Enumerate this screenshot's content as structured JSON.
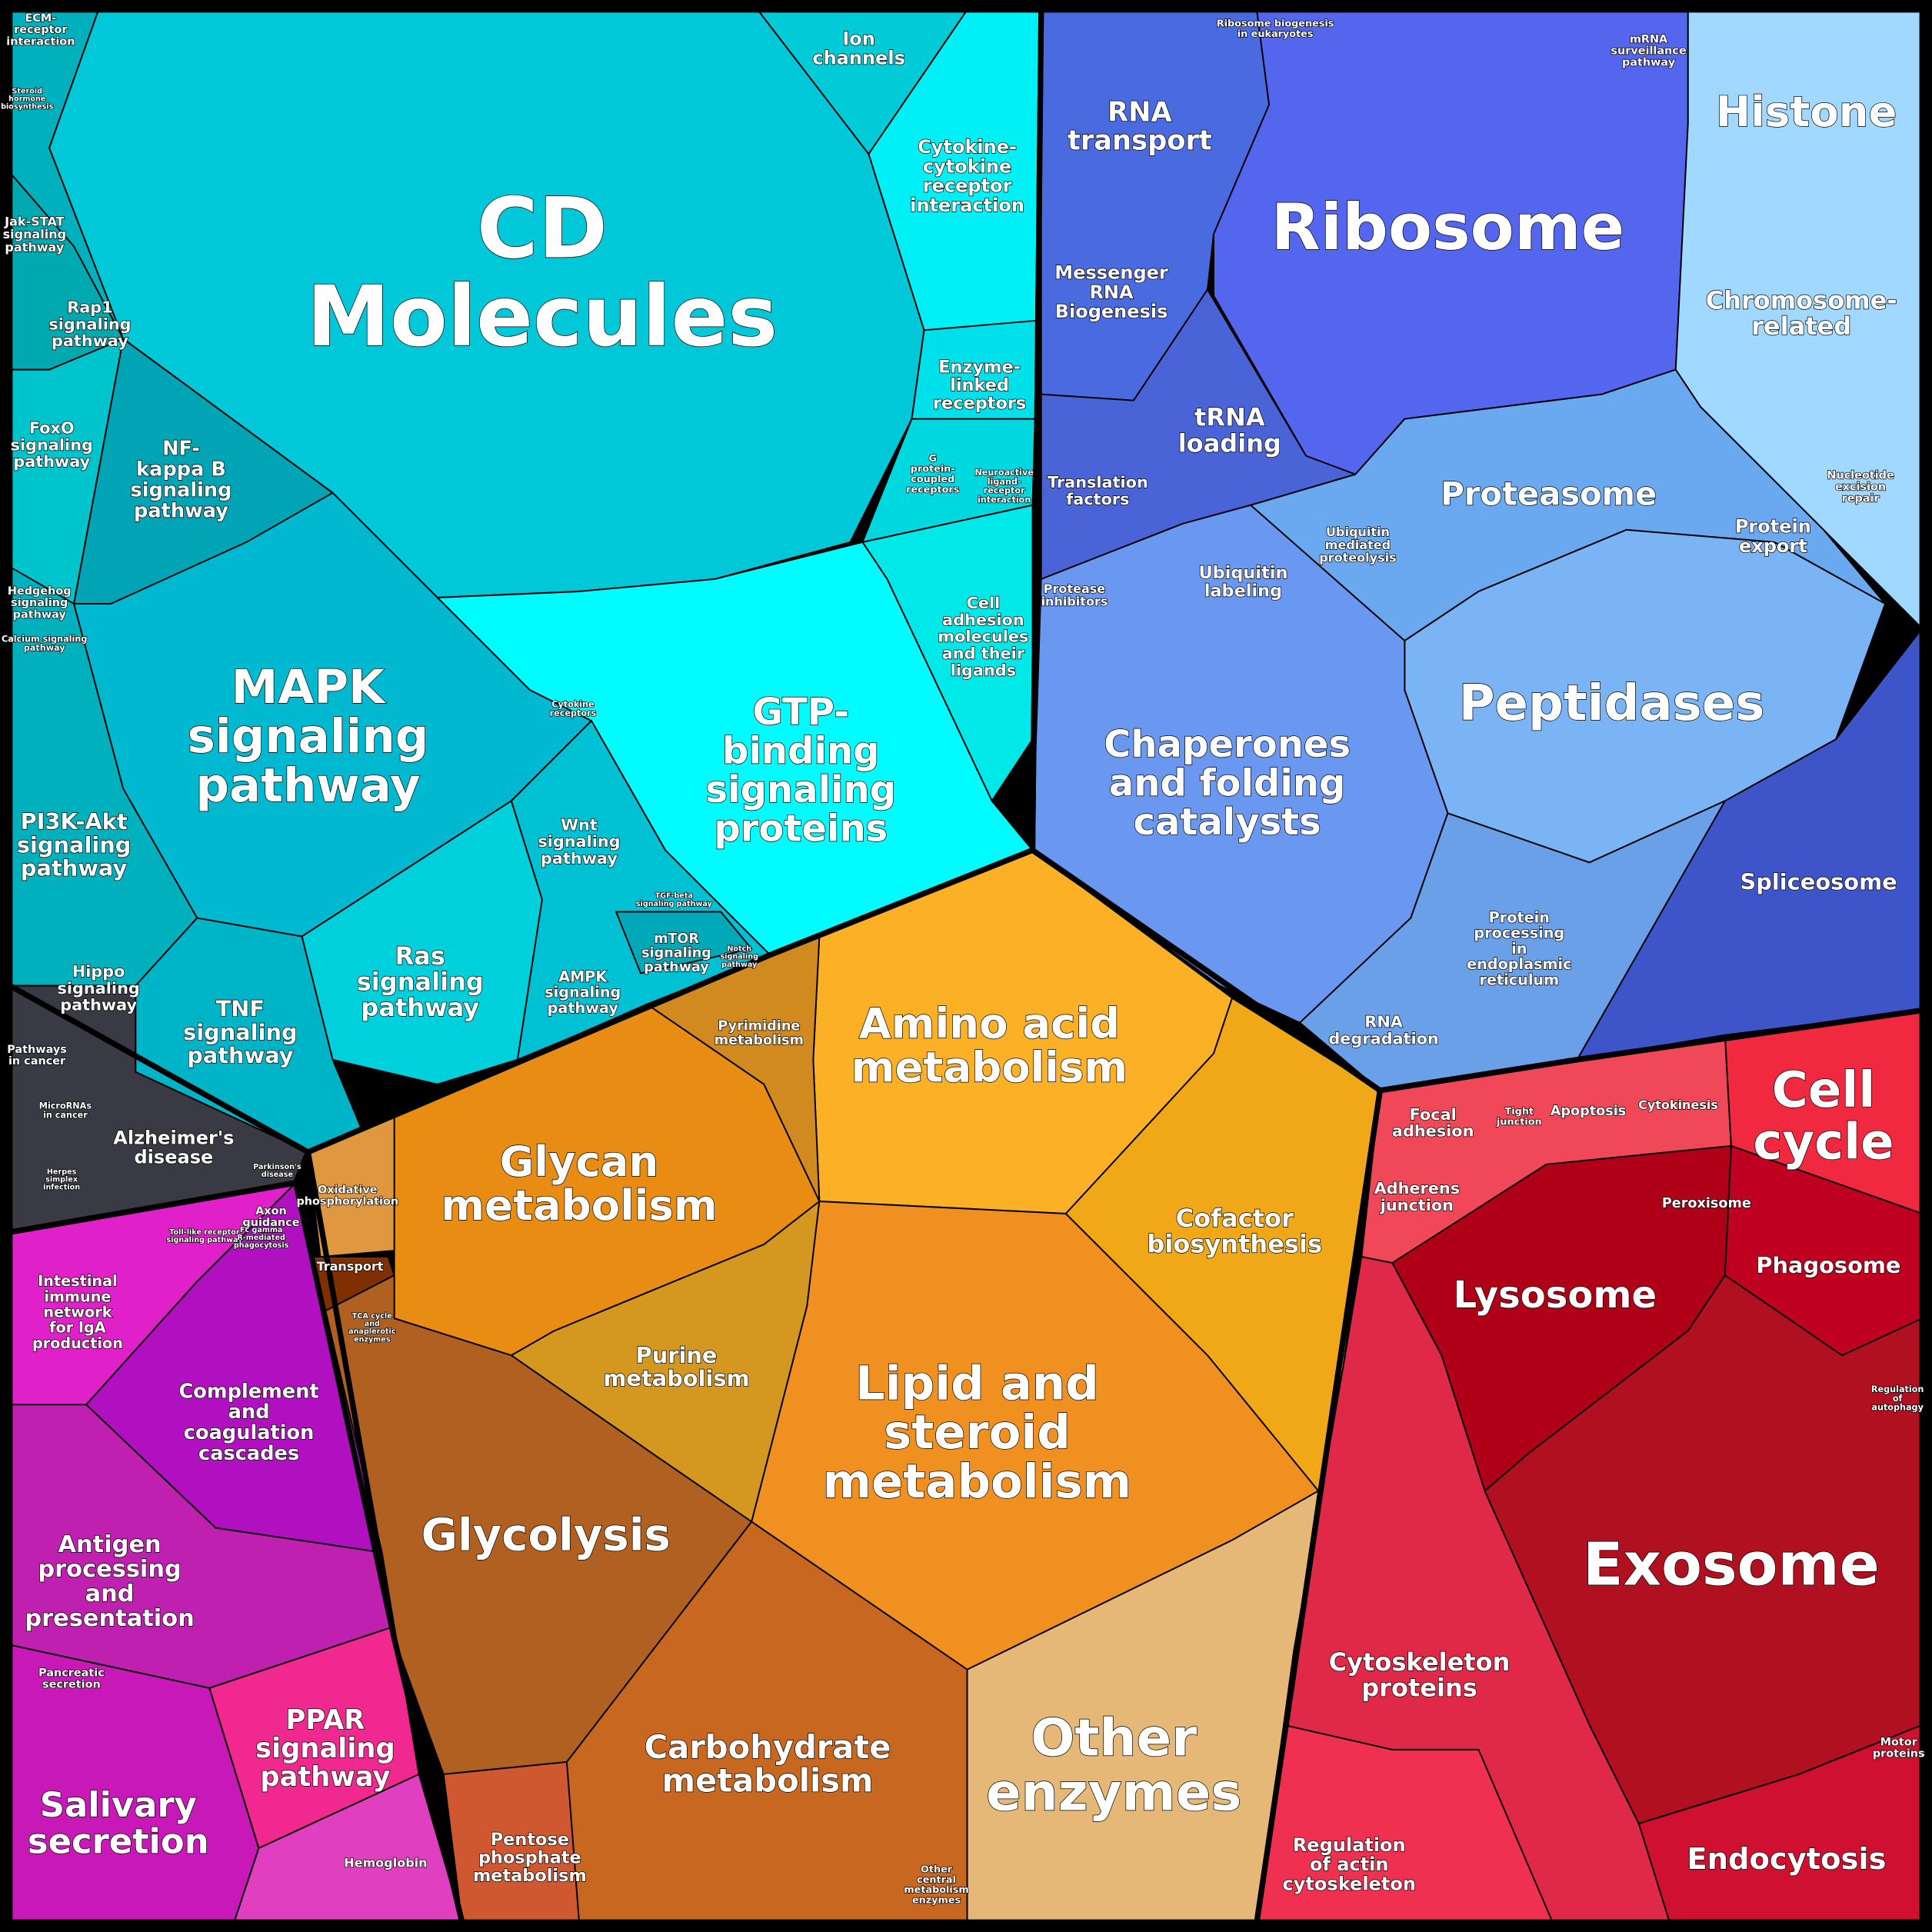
{
  "labels": [
    [
      "CD",
      "Molecules"
    ],
    [
      "Ion",
      "channels"
    ],
    [
      "Cytokine-",
      "cytokine",
      "receptor",
      "interaction"
    ],
    [
      "Enzyme-",
      "linked",
      "receptors"
    ],
    [
      "G",
      "protein-",
      "coupled",
      "receptors"
    ],
    [
      "Neuroactive",
      "ligand-",
      "receptor",
      "interaction"
    ],
    [
      "Cell",
      "adhesion",
      "molecules",
      "and their",
      "ligands"
    ],
    [
      "GTP-",
      "binding",
      "signaling",
      "proteins"
    ],
    [
      "Cytokine",
      "receptors"
    ],
    [
      "MAPK",
      "signaling",
      "pathway"
    ],
    [
      "Jak-STAT",
      "signaling",
      "pathway"
    ],
    [
      "Rap1",
      "signaling",
      "pathway"
    ],
    [
      "FoxO",
      "signaling",
      "pathway"
    ],
    [
      "NF-",
      "kappa B",
      "signaling",
      "pathway"
    ],
    [
      "Hedgehog",
      "signaling",
      "pathway"
    ],
    [
      "Calcium signaling",
      "pathway"
    ],
    [
      "PI3K-Akt",
      "signaling",
      "pathway"
    ],
    [
      "Hippo",
      "signaling",
      "pathway"
    ],
    [
      "TNF",
      "signaling",
      "pathway"
    ],
    [
      "Ras",
      "signaling",
      "pathway"
    ],
    [
      "Wnt",
      "signaling",
      "pathway"
    ],
    [
      "AMPK",
      "signaling",
      "pathway"
    ],
    [
      "mTOR",
      "signaling",
      "pathway"
    ],
    [
      "TGF-beta",
      "signaling pathway"
    ],
    [
      "Notch",
      "signaling",
      "pathway"
    ],
    [
      "ECM-",
      "receptor",
      "interaction"
    ],
    [
      "Steroid",
      "hormone",
      "biosynthesis"
    ],
    [
      "RNA",
      "transport"
    ],
    [
      "Ribosome"
    ],
    [
      "Messenger",
      "RNA",
      "Biogenesis"
    ],
    [
      "tRNA",
      "loading"
    ],
    [
      "Translation",
      "factors"
    ],
    [
      "Histone"
    ],
    [
      "Chromosome-",
      "related"
    ],
    [
      "Ribosome biogenesis",
      "in eukaryotes"
    ],
    [
      "mRNA",
      "surveillance",
      "pathway"
    ],
    [
      "Proteasome"
    ],
    [
      "Protein",
      "export"
    ],
    [
      "Nucleotide",
      "excision",
      "repair"
    ],
    [
      "Ubiquitin",
      "mediated",
      "proteolysis"
    ],
    [
      "Ubiquitin",
      "labeling"
    ],
    [
      "Protease",
      "inhibitors"
    ],
    [
      "Peptidases"
    ],
    [
      "Chaperones",
      "and folding",
      "catalysts"
    ],
    [
      "Spliceosome"
    ],
    [
      "Protein",
      "processing",
      "in",
      "endoplasmic",
      "reticulum"
    ],
    [
      "RNA",
      "degradation"
    ],
    [
      "Pathways",
      "in cancer"
    ],
    [
      "MicroRNAs",
      "in cancer"
    ],
    [
      "Alzheimer's",
      "disease"
    ],
    [
      "Parkinson's",
      "disease"
    ],
    [
      "Herpes",
      "simplex",
      "infection"
    ],
    [
      "Amino acid",
      "metabolism"
    ],
    [
      "Pyrimidine",
      "metabolism"
    ],
    [
      "Glycan",
      "metabolism"
    ],
    [
      "Cofactor",
      "biosynthesis"
    ],
    [
      "Oxidative",
      "phosphorylation"
    ],
    [
      "Transport"
    ],
    [
      "TCA cycle",
      "and",
      "anaplerotic",
      "enzymes"
    ],
    [
      "Purine",
      "metabolism"
    ],
    [
      "Lipid and",
      "steroid",
      "metabolism"
    ],
    [
      "Glycolysis"
    ],
    [
      "Carbohydrate",
      "metabolism"
    ],
    [
      "Pentose",
      "phosphate",
      "metabolism"
    ],
    [
      "Other",
      "central",
      "metabolism",
      "enzymes"
    ],
    [
      "Other",
      "enzymes"
    ],
    [
      "Axon",
      "guidance"
    ],
    [
      "Toll-like receptor",
      "signaling pathway"
    ],
    [
      "Intestinal",
      "immune",
      "network",
      "for IgA",
      "production"
    ],
    [
      "Complement",
      "and",
      "coagulation",
      "cascades"
    ],
    [
      "Antigen",
      "processing",
      "and",
      "presentation"
    ],
    [
      "Pancreatic",
      "secretion"
    ],
    [
      "Salivary",
      "secretion"
    ],
    [
      "PPAR",
      "signaling",
      "pathway"
    ],
    [
      "Hemoglobin"
    ],
    [
      "Fc gamma",
      "R-mediated",
      "phagocytosis"
    ],
    [
      "Focal",
      "adhesion"
    ],
    [
      "Tight",
      "junction"
    ],
    [
      "Apoptosis"
    ],
    [
      "Cytokinesis"
    ],
    [
      "Cell",
      "cycle"
    ],
    [
      "Adherens",
      "junction"
    ],
    [
      "Peroxisome"
    ],
    [
      "Phagosome"
    ],
    [
      "Lysosome"
    ],
    [
      "Regulation",
      "of",
      "autophagy"
    ],
    [
      "Exosome"
    ],
    [
      "Cytoskeleton",
      "proteins"
    ],
    [
      "Motor",
      "proteins"
    ],
    [
      "Regulation",
      "of actin",
      "cytoskeleton"
    ],
    [
      "Endocytosis"
    ]
  ]
}
